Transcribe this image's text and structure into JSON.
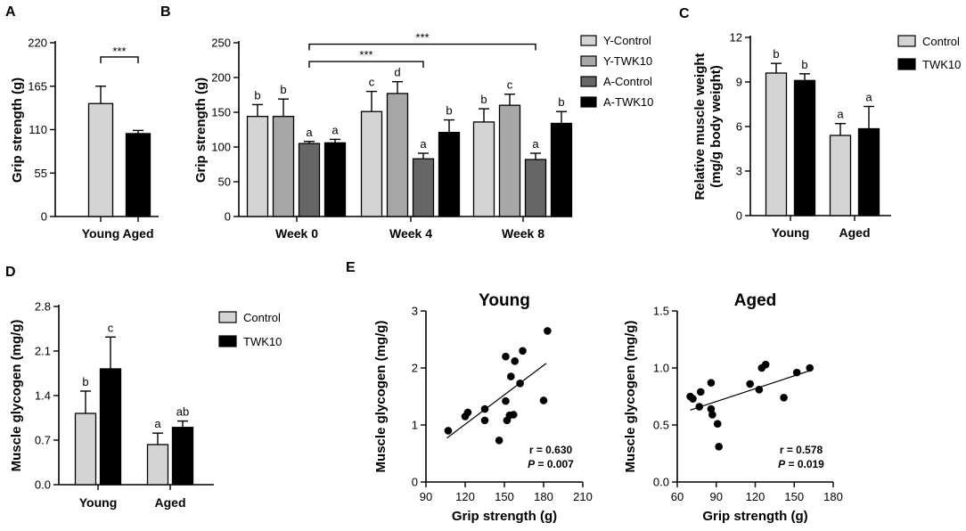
{
  "panel_labels": [
    "A",
    "B",
    "C",
    "D",
    "E"
  ],
  "chart_data": [
    {
      "id": "A",
      "type": "bar",
      "ylabel": "Grip strength (g)",
      "ylim": [
        0,
        220
      ],
      "yticks": [
        0,
        55,
        110,
        165,
        220
      ],
      "categories": [
        "Young",
        "Aged"
      ],
      "series": [
        {
          "name": "Grip strength",
          "values": [
            143,
            105
          ],
          "errors": [
            22,
            4
          ],
          "colors": [
            "#d4d4d4",
            "#000000"
          ]
        }
      ],
      "significance": [
        {
          "label": "***",
          "between": [
            0,
            1
          ],
          "level": 202
        }
      ]
    },
    {
      "id": "B",
      "type": "bar",
      "ylabel": "Grip strength (g)",
      "ylim": [
        0,
        250
      ],
      "yticks": [
        0,
        50,
        100,
        150,
        200,
        250
      ],
      "categories": [
        "Week 0",
        "Week 4",
        "Week 8"
      ],
      "series": [
        {
          "name": "Y-Control",
          "color": "#d4d4d4",
          "values": [
            144,
            151,
            136
          ],
          "errors": [
            17,
            29,
            19
          ],
          "letters": [
            "b",
            "c",
            "b"
          ]
        },
        {
          "name": "Y-TWK10",
          "color": "#a7a7a7",
          "values": [
            144,
            177,
            160
          ],
          "errors": [
            25,
            17,
            16
          ],
          "letters": [
            "b",
            "d",
            "c"
          ]
        },
        {
          "name": "A-Control",
          "color": "#666666",
          "values": [
            105,
            83,
            82
          ],
          "errors": [
            3,
            8,
            9
          ],
          "letters": [
            "a",
            "a",
            "a"
          ]
        },
        {
          "name": "A-TWK10",
          "color": "#000000",
          "values": [
            106,
            121,
            134
          ],
          "errors": [
            5,
            18,
            17
          ],
          "letters": [
            "a",
            "b",
            "b"
          ]
        }
      ],
      "significance": [
        {
          "label": "***",
          "from": [
            0,
            2
          ],
          "to": [
            2,
            2
          ],
          "level": 248
        },
        {
          "label": "***",
          "from": [
            0,
            2
          ],
          "to": [
            1,
            2
          ],
          "level": 223
        }
      ]
    },
    {
      "id": "C",
      "type": "bar",
      "ylabel": "Relative muscle weight",
      "ylabel2": "(mg/g body weight)",
      "ylim": [
        0,
        12
      ],
      "yticks": [
        0,
        3,
        6,
        9,
        12
      ],
      "categories": [
        "Young",
        "Aged"
      ],
      "series": [
        {
          "name": "Control",
          "color": "#d4d4d4",
          "values": [
            9.6,
            5.4
          ],
          "errors": [
            0.65,
            0.8
          ],
          "letters": [
            "b",
            "a"
          ]
        },
        {
          "name": "TWK10",
          "color": "#000000",
          "values": [
            9.1,
            5.85
          ],
          "errors": [
            0.45,
            1.5
          ],
          "letters": [
            "b",
            "a"
          ]
        }
      ]
    },
    {
      "id": "D",
      "type": "bar",
      "ylabel": "Muscle glycogen (mg/g)",
      "ylim": [
        0,
        2.8
      ],
      "yticks": [
        0,
        0.7,
        1.4,
        2.1,
        2.8
      ],
      "categories": [
        "Young",
        "Aged"
      ],
      "series": [
        {
          "name": "Control",
          "color": "#d4d4d4",
          "values": [
            1.12,
            0.63
          ],
          "errors": [
            0.35,
            0.18
          ],
          "letters": [
            "b",
            "a"
          ]
        },
        {
          "name": "TWK10",
          "color": "#000000",
          "values": [
            1.82,
            0.9
          ],
          "errors": [
            0.5,
            0.1
          ],
          "letters": [
            "c",
            "ab"
          ]
        }
      ]
    },
    {
      "id": "E-Young",
      "type": "scatter",
      "title": "Young",
      "xlabel": "Grip strength (g)",
      "ylabel": "Muscle glycogen (mg/g)",
      "xlim": [
        90,
        210
      ],
      "ylim": [
        0,
        3
      ],
      "xticks": [
        90,
        120,
        150,
        180,
        210
      ],
      "yticks": [
        0,
        1,
        2,
        3
      ],
      "points": [
        [
          107,
          0.9
        ],
        [
          120,
          1.15
        ],
        [
          122,
          1.22
        ],
        [
          135,
          1.28
        ],
        [
          135,
          1.08
        ],
        [
          146,
          0.73
        ],
        [
          151,
          2.2
        ],
        [
          151,
          1.42
        ],
        [
          152,
          1.08
        ],
        [
          154,
          1.17
        ],
        [
          155,
          1.85
        ],
        [
          157,
          1.18
        ],
        [
          158,
          2.12
        ],
        [
          162,
          1.73
        ],
        [
          164,
          2.3
        ],
        [
          180,
          1.43
        ],
        [
          183,
          2.65
        ]
      ],
      "fit": {
        "x": [
          106,
          182
        ],
        "y": [
          0.77,
          2.08
        ]
      },
      "stats": {
        "r": "r = 0.630",
        "p_prefix": "P",
        "p_value": " = 0.007"
      }
    },
    {
      "id": "E-Aged",
      "type": "scatter",
      "title": "Aged",
      "xlabel": "Grip strength (g)",
      "ylabel": "Muscle glycogen (mg/g)",
      "xlim": [
        60,
        180
      ],
      "ylim": [
        0,
        1.5
      ],
      "xticks": [
        60,
        90,
        120,
        150,
        180
      ],
      "yticks": [
        0.0,
        0.5,
        1.0,
        1.5
      ],
      "points": [
        [
          70,
          0.75
        ],
        [
          72,
          0.73
        ],
        [
          77,
          0.66
        ],
        [
          78,
          0.79
        ],
        [
          86,
          0.87
        ],
        [
          86,
          0.64
        ],
        [
          87,
          0.59
        ],
        [
          91,
          0.51
        ],
        [
          92,
          0.31
        ],
        [
          116,
          0.86
        ],
        [
          123,
          0.81
        ],
        [
          125,
          1.0
        ],
        [
          128,
          1.03
        ],
        [
          142,
          0.74
        ],
        [
          152,
          0.96
        ],
        [
          162,
          1.0
        ]
      ],
      "fit": {
        "x": [
          70,
          163
        ],
        "y": [
          0.63,
          0.98
        ]
      },
      "stats": {
        "r": "r = 0.578",
        "p_prefix": "P",
        "p_value": " = 0.019"
      }
    }
  ]
}
